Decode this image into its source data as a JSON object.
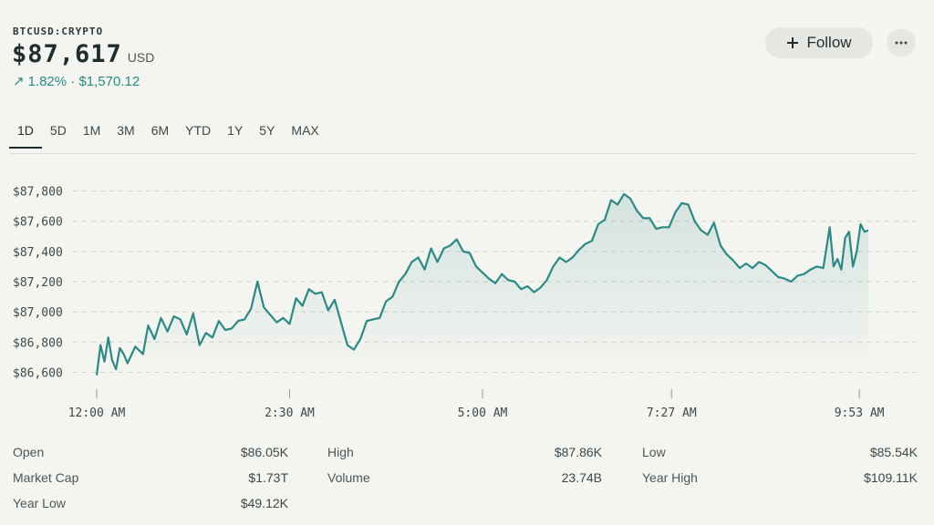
{
  "header": {
    "symbol": "BTCUSD:CRYPTO",
    "price": "$87,617",
    "currency": "USD",
    "change_arrow": "↗",
    "change": "1.82% · $1,570.12",
    "follow_label": "Follow",
    "follow_icon": "plus-icon",
    "more_icon": "ellipsis-icon"
  },
  "tabs": [
    "1D",
    "5D",
    "1M",
    "3M",
    "6M",
    "YTD",
    "1Y",
    "5Y",
    "MAX"
  ],
  "active_tab": "1D",
  "stats": [
    {
      "label": "Open",
      "value": "$86.05K"
    },
    {
      "label": "High",
      "value": "$87.86K"
    },
    {
      "label": "Low",
      "value": "$85.54K"
    },
    {
      "label": "Market Cap",
      "value": "$1.73T"
    },
    {
      "label": "Volume",
      "value": "23.74B"
    },
    {
      "label": "Year High",
      "value": "$109.11K"
    },
    {
      "label": "Year Low",
      "value": "$49.12K"
    }
  ],
  "colors": {
    "line": "#2b8a86",
    "grid": "#cfd2cc",
    "text": "#3b4a48"
  },
  "chart_data": {
    "type": "line",
    "title": "",
    "xlabel": "",
    "ylabel": "",
    "ylim": [
      86500,
      87900
    ],
    "xlim": [
      0,
      600
    ],
    "y_ticks": [
      86600,
      86800,
      87000,
      87200,
      87400,
      87600,
      87800
    ],
    "y_tick_labels": [
      "$86,600",
      "$86,800",
      "$87,000",
      "$87,200",
      "$87,400",
      "$87,600",
      "$87,800"
    ],
    "x_ticks": [
      0,
      150,
      300,
      447,
      593
    ],
    "x_tick_labels": [
      "12:00 AM",
      "2:30 AM",
      "5:00 AM",
      "7:27 AM",
      "9:53 AM"
    ],
    "series": [
      {
        "name": "BTCUSD",
        "x": [
          0,
          3,
          6,
          9,
          12,
          15,
          18,
          21,
          24,
          30,
          36,
          40,
          45,
          50,
          55,
          60,
          65,
          70,
          75,
          80,
          85,
          90,
          95,
          100,
          105,
          110,
          115,
          120,
          125,
          130,
          135,
          140,
          145,
          150,
          155,
          160,
          165,
          170,
          175,
          180,
          185,
          190,
          195,
          200,
          205,
          210,
          215,
          220,
          225,
          230,
          235,
          240,
          245,
          250,
          255,
          260,
          265,
          270,
          275,
          280,
          285,
          290,
          295,
          300,
          305,
          310,
          315,
          320,
          325,
          330,
          335,
          340,
          345,
          350,
          355,
          360,
          365,
          370,
          375,
          380,
          385,
          390,
          395,
          400,
          405,
          410,
          415,
          420,
          425,
          430,
          435,
          440,
          445,
          450,
          455,
          460,
          465,
          470,
          475,
          480,
          485,
          490,
          495,
          500,
          505,
          510,
          515,
          520,
          525,
          530,
          535,
          540,
          545,
          550,
          555,
          560,
          565,
          570,
          573,
          576,
          579,
          582,
          585,
          588,
          591,
          594,
          597,
          600
        ],
        "values": [
          86580,
          86780,
          86670,
          86830,
          86680,
          86620,
          86760,
          86720,
          86660,
          86770,
          86720,
          86910,
          86820,
          86960,
          86870,
          86970,
          86950,
          86850,
          86990,
          86780,
          86860,
          86830,
          86940,
          86880,
          86890,
          86940,
          86950,
          87020,
          87200,
          87030,
          86980,
          86930,
          86960,
          86920,
          87090,
          87040,
          87150,
          87120,
          87130,
          87010,
          87080,
          86930,
          86780,
          86750,
          86820,
          86940,
          86950,
          86960,
          87070,
          87100,
          87200,
          87250,
          87330,
          87360,
          87280,
          87420,
          87330,
          87420,
          87440,
          87480,
          87400,
          87390,
          87300,
          87260,
          87220,
          87190,
          87250,
          87210,
          87200,
          87150,
          87170,
          87130,
          87160,
          87210,
          87300,
          87360,
          87330,
          87360,
          87410,
          87450,
          87470,
          87580,
          87610,
          87740,
          87710,
          87780,
          87750,
          87670,
          87620,
          87620,
          87550,
          87560,
          87560,
          87660,
          87720,
          87710,
          87600,
          87540,
          87510,
          87590,
          87440,
          87380,
          87340,
          87290,
          87320,
          87290,
          87330,
          87310,
          87270,
          87230,
          87220,
          87200,
          87240,
          87250,
          87280,
          87300,
          87290,
          87560,
          87300,
          87350,
          87280,
          87490,
          87530,
          87300,
          87400,
          87580,
          87530,
          87540
        ]
      }
    ]
  }
}
